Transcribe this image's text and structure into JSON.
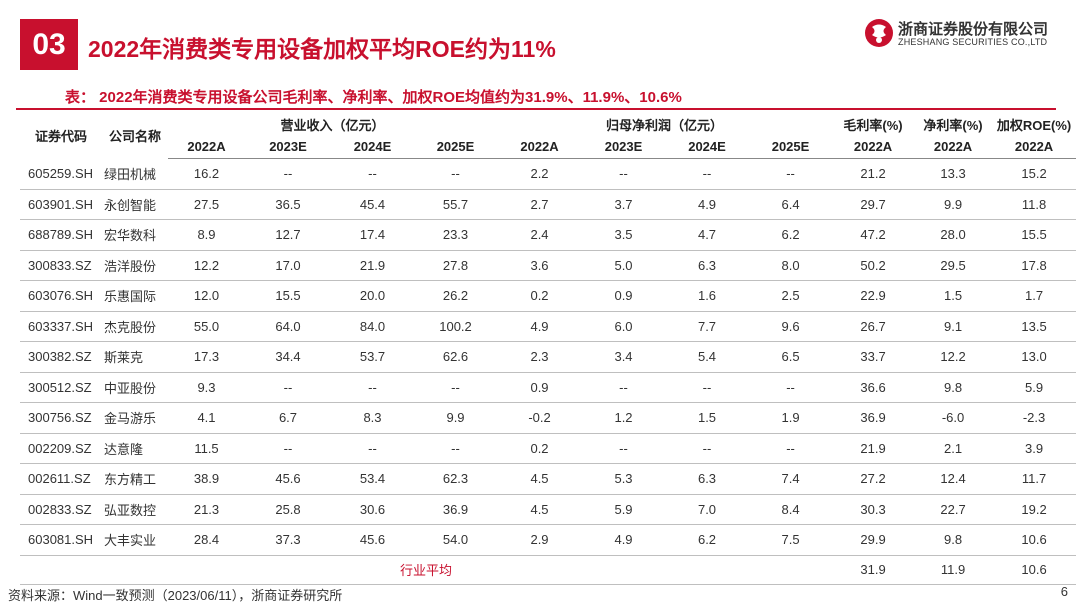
{
  "section_number": "03",
  "title": "2022年消费类专用设备加权平均ROE约为11%",
  "logo": {
    "cn": "浙商证券股份有限公司",
    "en": "ZHESHANG SECURITIES CO.,LTD"
  },
  "caption": "表： 2022年消费类专用设备公司毛利率、净利率、加权ROE均值约为31.9%、11.9%、10.6%",
  "table": {
    "col_code": "证券代码",
    "col_name": "公司名称",
    "group_revenue": "营业收入（亿元）",
    "group_profit": "归母净利润（亿元）",
    "col_gross": "毛利率(%)",
    "col_net": "净利率(%)",
    "col_roe": "加权ROE(%)",
    "years": [
      "2022A",
      "2023E",
      "2024E",
      "2025E"
    ],
    "year_2022": "2022A",
    "rows": [
      [
        "605259.SH",
        "绿田机械",
        "16.2",
        "--",
        "--",
        "--",
        "2.2",
        "--",
        "--",
        "--",
        "21.2",
        "13.3",
        "15.2"
      ],
      [
        "603901.SH",
        "永创智能",
        "27.5",
        "36.5",
        "45.4",
        "55.7",
        "2.7",
        "3.7",
        "4.9",
        "6.4",
        "29.7",
        "9.9",
        "11.8"
      ],
      [
        "688789.SH",
        "宏华数科",
        "8.9",
        "12.7",
        "17.4",
        "23.3",
        "2.4",
        "3.5",
        "4.7",
        "6.2",
        "47.2",
        "28.0",
        "15.5"
      ],
      [
        "300833.SZ",
        "浩洋股份",
        "12.2",
        "17.0",
        "21.9",
        "27.8",
        "3.6",
        "5.0",
        "6.3",
        "8.0",
        "50.2",
        "29.5",
        "17.8"
      ],
      [
        "603076.SH",
        "乐惠国际",
        "12.0",
        "15.5",
        "20.0",
        "26.2",
        "0.2",
        "0.9",
        "1.6",
        "2.5",
        "22.9",
        "1.5",
        "1.7"
      ],
      [
        "603337.SH",
        "杰克股份",
        "55.0",
        "64.0",
        "84.0",
        "100.2",
        "4.9",
        "6.0",
        "7.7",
        "9.6",
        "26.7",
        "9.1",
        "13.5"
      ],
      [
        "300382.SZ",
        "斯莱克",
        "17.3",
        "34.4",
        "53.7",
        "62.6",
        "2.3",
        "3.4",
        "5.4",
        "6.5",
        "33.7",
        "12.2",
        "13.0"
      ],
      [
        "300512.SZ",
        "中亚股份",
        "9.3",
        "--",
        "--",
        "--",
        "0.9",
        "--",
        "--",
        "--",
        "36.6",
        "9.8",
        "5.9"
      ],
      [
        "300756.SZ",
        "金马游乐",
        "4.1",
        "6.7",
        "8.3",
        "9.9",
        "-0.2",
        "1.2",
        "1.5",
        "1.9",
        "36.9",
        "-6.0",
        "-2.3"
      ],
      [
        "002209.SZ",
        "达意隆",
        "11.5",
        "--",
        "--",
        "--",
        "0.2",
        "--",
        "--",
        "--",
        "21.9",
        "2.1",
        "3.9"
      ],
      [
        "002611.SZ",
        "东方精工",
        "38.9",
        "45.6",
        "53.4",
        "62.3",
        "4.5",
        "5.3",
        "6.3",
        "7.4",
        "27.2",
        "12.4",
        "11.7"
      ],
      [
        "002833.SZ",
        "弘亚数控",
        "21.3",
        "25.8",
        "30.6",
        "36.9",
        "4.5",
        "5.9",
        "7.0",
        "8.4",
        "30.3",
        "22.7",
        "19.2"
      ],
      [
        "603081.SH",
        "大丰实业",
        "28.4",
        "37.3",
        "45.6",
        "54.0",
        "2.9",
        "4.9",
        "6.2",
        "7.5",
        "29.9",
        "9.8",
        "10.6"
      ]
    ],
    "average": {
      "label": "行业平均",
      "gross": "31.9",
      "net": "11.9",
      "roe": "10.6"
    }
  },
  "footer": "资料来源：Wind一致预测（2023/06/11），浙商证券研究所",
  "page_number": "6",
  "colors": {
    "accent": "#c8102e"
  }
}
